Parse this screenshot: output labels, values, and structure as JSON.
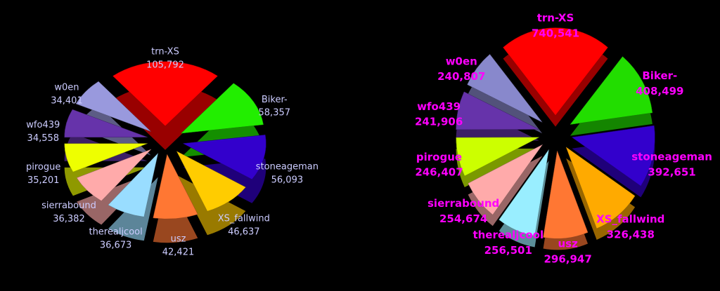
{
  "chart_data": [
    {
      "type": "pie",
      "label_color": "#ccccff",
      "categories": [
        "trn-XS",
        "Biker-",
        "stoneageman",
        "XS_fallwind",
        "usz",
        "therealjcool",
        "sierrabound",
        "pirogue",
        "wfo439",
        "w0en"
      ],
      "values": [
        105792,
        58357,
        56093,
        46637,
        42421,
        36673,
        36382,
        35201,
        34558,
        34401
      ],
      "value_labels": [
        "105,792",
        "58,357",
        "56,093",
        "46,637",
        "42,421",
        "36,673",
        "36,382",
        "35,201",
        "34,558",
        "34,401"
      ],
      "colors": [
        "#ff0000",
        "#22ee00",
        "#3300cc",
        "#ffcc00",
        "#ff7733",
        "#99ddff",
        "#ffaaaa",
        "#eeff00",
        "#6633aa",
        "#9999dd"
      ]
    },
    {
      "type": "pie",
      "label_color": "#ff00ff",
      "categories": [
        "trn-XS",
        "Biker-",
        "stoneageman",
        "XS_fallwind",
        "usz",
        "therealjcool",
        "sierrabound",
        "pirogue",
        "wfo439",
        "w0en"
      ],
      "values": [
        740541,
        408499,
        392651,
        326438,
        296947,
        256501,
        254674,
        246407,
        241906,
        240807
      ],
      "value_labels": [
        "740,541",
        "408,499",
        "392,651",
        "326,438",
        "296,947",
        "256,501",
        "254,674",
        "246,407",
        "241,906",
        "240,807"
      ],
      "colors": [
        "#ff0000",
        "#22dd00",
        "#3300cc",
        "#ffaa00",
        "#ff7733",
        "#99eeff",
        "#ffaaaa",
        "#ccff00",
        "#6633aa",
        "#8888cc"
      ]
    }
  ]
}
